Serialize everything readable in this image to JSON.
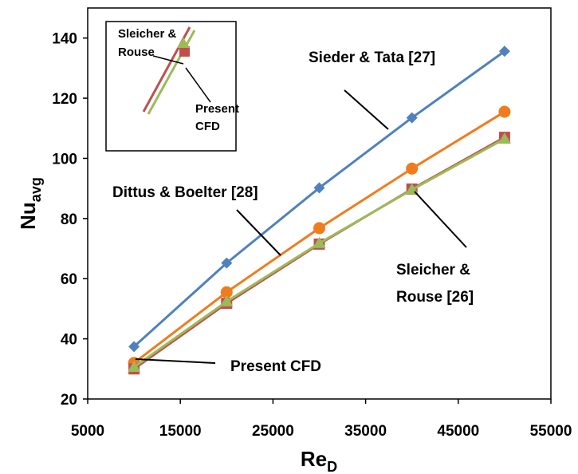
{
  "chart_data": {
    "type": "line",
    "title": "",
    "xlabel": {
      "main": "Re",
      "sub": "D"
    },
    "ylabel": {
      "main": "Nu",
      "sub": "avg"
    },
    "xlim": [
      5000,
      55000
    ],
    "ylim": [
      20,
      150
    ],
    "xticks": [
      5000,
      15000,
      25000,
      35000,
      45000,
      55000
    ],
    "yticks": [
      20,
      40,
      60,
      80,
      100,
      120,
      140
    ],
    "x": [
      10000,
      20000,
      30000,
      40000,
      50000
    ],
    "grid": false,
    "legend": "none",
    "series": [
      {
        "name": "Sieder & Tata [27]",
        "color": "#4f81bd",
        "marker": "diamond",
        "values": [
          37.4,
          65.2,
          90.2,
          113.5,
          135.6
        ]
      },
      {
        "name": "Dittus & Boelter [28]",
        "color": "#f07c1e",
        "marker": "circle",
        "values": [
          32.0,
          55.5,
          76.8,
          96.6,
          115.5
        ]
      },
      {
        "name": "Sleicher & Rouse [26]",
        "color": "#c0504d",
        "marker": "square",
        "values": [
          30.0,
          51.8,
          71.5,
          89.8,
          107.0
        ]
      },
      {
        "name": "Present CFD",
        "color": "#9bbb59",
        "marker": "triangle",
        "values": [
          30.6,
          52.4,
          71.8,
          89.6,
          106.5
        ]
      }
    ],
    "annotations": [
      {
        "key": "sieder",
        "lines": [
          "Sieder & Tata [27]"
        ]
      },
      {
        "key": "dittus",
        "lines": [
          "Dittus & Boelter [28]"
        ]
      },
      {
        "key": "sleicher",
        "lines": [
          "Sleicher &",
          "Rouse [26]"
        ]
      },
      {
        "key": "cfd",
        "lines": [
          "Present CFD"
        ]
      }
    ],
    "inset": {
      "annotations": [
        {
          "key": "sleicher",
          "lines": [
            "Sleicher &",
            "Rouse"
          ]
        },
        {
          "key": "cfd",
          "lines": [
            "Present",
            "CFD"
          ]
        }
      ]
    }
  }
}
